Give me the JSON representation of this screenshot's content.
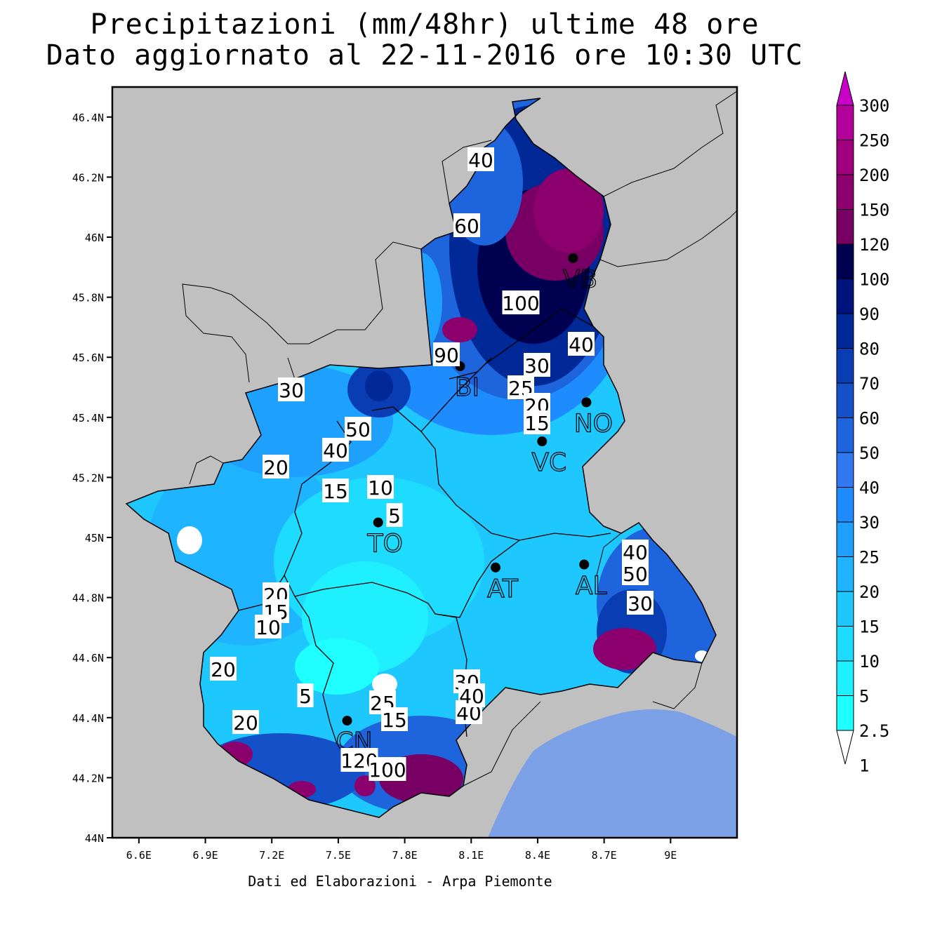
{
  "title": {
    "line1": "Precipitazioni (mm/48hr) ultime 48 ore",
    "line2": "Dato aggiornato al 22-11-2016 ore 10:30 UTC"
  },
  "credit": "Dati ed Elaborazioni - Arpa Piemonte",
  "axes": {
    "x_ticks": [
      "6.6E",
      "6.9E",
      "7.2E",
      "7.5E",
      "7.8E",
      "8.1E",
      "8.4E",
      "8.7E",
      "9E"
    ],
    "y_ticks": [
      "46.4N",
      "46.2N",
      "46N",
      "45.8N",
      "45.6N",
      "45.4N",
      "45.2N",
      "45N",
      "44.8N",
      "44.6N",
      "44.4N",
      "44.2N",
      "44N"
    ],
    "lon_range": [
      6.48,
      9.3
    ],
    "lat_range": [
      44.0,
      46.5
    ]
  },
  "colorbar": {
    "labels": [
      "300",
      "250",
      "200",
      "150",
      "120",
      "100",
      "90",
      "80",
      "70",
      "60",
      "50",
      "40",
      "30",
      "25",
      "20",
      "15",
      "10",
      "5",
      "2.5",
      "1"
    ],
    "colors": [
      "#c800c8",
      "#b4009b",
      "#a0007d",
      "#8c006e",
      "#780064",
      "#000050",
      "#00137d",
      "#002896",
      "#0a3cb4",
      "#1450c8",
      "#1e64dc",
      "#3278f0",
      "#1e8cff",
      "#1ea0ff",
      "#1eb4ff",
      "#1ec8ff",
      "#1edcff",
      "#1ef0ff",
      "#1effff"
    ]
  },
  "cities": [
    {
      "code": "VB",
      "lon": 8.56,
      "lat": 45.93
    },
    {
      "code": "BI",
      "lon": 8.05,
      "lat": 45.57
    },
    {
      "code": "NO",
      "lon": 8.62,
      "lat": 45.45
    },
    {
      "code": "VC",
      "lon": 8.42,
      "lat": 45.32
    },
    {
      "code": "TO",
      "lon": 7.68,
      "lat": 45.05
    },
    {
      "code": "AT",
      "lon": 8.21,
      "lat": 44.9
    },
    {
      "code": "AL",
      "lon": 8.61,
      "lat": 44.91
    },
    {
      "code": "CN",
      "lon": 7.54,
      "lat": 44.39
    }
  ],
  "contour_labels": [
    "40",
    "60",
    "100",
    "40",
    "90",
    "30",
    "25",
    "20",
    "15",
    "30",
    "50",
    "40",
    "20",
    "15",
    "10",
    "5",
    "20",
    "15",
    "10",
    "20",
    "5",
    "25",
    "15",
    "20",
    "40",
    "120",
    "100",
    "30",
    "40",
    "40",
    "50",
    "30"
  ],
  "colors": {
    "background": "#c0c0c0",
    "sea": "#7ba0e6",
    "border": "#000000"
  }
}
